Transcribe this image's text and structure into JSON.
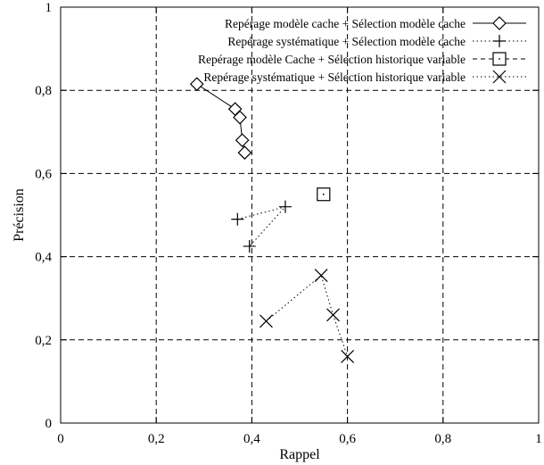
{
  "chart_data": {
    "type": "scatter",
    "title": "",
    "xlabel": "Rappel",
    "ylabel": "Précision",
    "xlim": [
      0,
      1
    ],
    "ylim": [
      0,
      1
    ],
    "grid": true,
    "legend_position": "top-right",
    "xticks": [
      {
        "value": 0,
        "label": "0"
      },
      {
        "value": 0.2,
        "label": "0,2"
      },
      {
        "value": 0.4,
        "label": "0,4"
      },
      {
        "value": 0.6,
        "label": "0,6"
      },
      {
        "value": 0.8,
        "label": "0,8"
      },
      {
        "value": 1,
        "label": "1"
      }
    ],
    "yticks": [
      {
        "value": 0,
        "label": "0"
      },
      {
        "value": 0.2,
        "label": "0,2"
      },
      {
        "value": 0.4,
        "label": "0,4"
      },
      {
        "value": 0.6,
        "label": "0,6"
      },
      {
        "value": 0.8,
        "label": "0,8"
      },
      {
        "value": 1,
        "label": "1"
      }
    ],
    "series": [
      {
        "name": "Repérage modèle cache + Sélection modèle cache",
        "marker": "diamond",
        "line": "solid",
        "points": [
          [
            0.285,
            0.815
          ],
          [
            0.365,
            0.755
          ],
          [
            0.375,
            0.735
          ],
          [
            0.38,
            0.68
          ],
          [
            0.385,
            0.65
          ]
        ]
      },
      {
        "name": "Repérage systématique + Sélection modèle cache",
        "marker": "plus",
        "line": "dotted",
        "points": [
          [
            0.37,
            0.49
          ],
          [
            0.47,
            0.52
          ],
          [
            0.395,
            0.425
          ]
        ]
      },
      {
        "name": "Repérage modèle Cache + Sélection historique variable",
        "marker": "square",
        "line": "dashed",
        "points": [
          [
            0.55,
            0.55
          ]
        ]
      },
      {
        "name": "Repérage systématique + Sélection historique variable",
        "marker": "cross",
        "line": "dotted",
        "points": [
          [
            0.43,
            0.245
          ],
          [
            0.545,
            0.355
          ],
          [
            0.57,
            0.26
          ],
          [
            0.6,
            0.16
          ]
        ]
      }
    ]
  }
}
